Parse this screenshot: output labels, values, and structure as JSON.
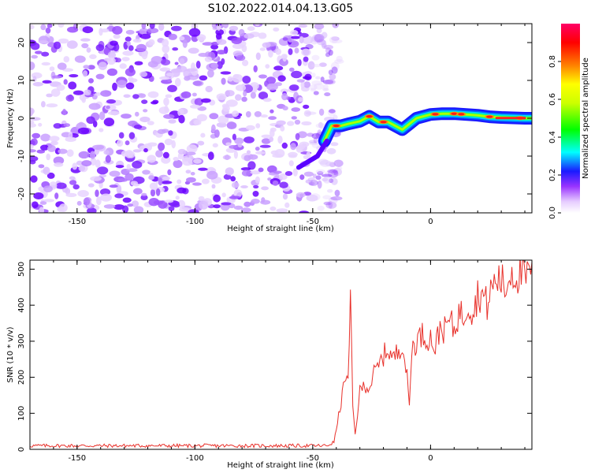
{
  "title": "S102.2022.014.04.13.G05",
  "chart_data": [
    {
      "type": "heatmap",
      "name": "spectrogram",
      "xlabel": "Height of straight line (km)",
      "ylabel": "Frequency (Hz)",
      "xlim": [
        -170,
        43
      ],
      "ylim": [
        -25,
        25
      ],
      "xticks": [
        -150,
        -100,
        -50,
        0
      ],
      "yticks": [
        -20,
        -10,
        0,
        10,
        20
      ],
      "colorbar": {
        "label": "Normalized spectral amplitude",
        "range": [
          0,
          1
        ],
        "ticks": [
          0.0,
          0.2,
          0.4,
          0.6,
          0.8
        ]
      },
      "signal_ridge": {
        "description_points_x": [
          -45,
          -42,
          -38,
          -35,
          -30,
          -26,
          -22,
          -18,
          -15,
          -12,
          -9,
          -6,
          -3,
          0,
          5,
          10,
          15,
          20,
          25,
          30,
          35,
          40,
          43
        ],
        "description_points_y": [
          -6,
          -2,
          -2,
          -1.5,
          -0.8,
          0.5,
          -1,
          -1,
          -2,
          -3,
          -1.5,
          0,
          0.5,
          1,
          1.2,
          1.2,
          1,
          0.8,
          0.4,
          0.2,
          0.1,
          0,
          0
        ],
        "peak_amplitude_x": [
          -40,
          -26,
          -20,
          2,
          10,
          13,
          25,
          38
        ]
      },
      "noise_region_x": [
        -170,
        -45
      ]
    },
    {
      "type": "line",
      "name": "snr",
      "xlabel": "Height of straight line (km)",
      "ylabel": "SNR (10 * v/v)",
      "xlim": [
        -170,
        43
      ],
      "ylim": [
        0,
        525
      ],
      "xticks": [
        -150,
        -100,
        -50,
        0
      ],
      "yticks": [
        0,
        100,
        200,
        300,
        400,
        500
      ],
      "color": "#e8302a",
      "series": [
        {
          "name": "SNR",
          "x": [
            -170,
            -160,
            -150,
            -140,
            -130,
            -120,
            -110,
            -100,
            -90,
            -80,
            -70,
            -60,
            -50,
            -44,
            -41,
            -38,
            -36,
            -35,
            -34,
            -33,
            -32,
            -30,
            -28,
            -26,
            -24,
            -22,
            -20,
            -18,
            -16,
            -14,
            -12,
            -10,
            -9,
            -8,
            -6,
            -4,
            -2,
            0,
            2,
            4,
            6,
            8,
            10,
            12,
            14,
            16,
            18,
            20,
            22,
            24,
            26,
            28,
            30,
            32,
            34,
            36,
            38,
            40,
            42,
            43
          ],
          "y": [
            10,
            10,
            10,
            10,
            10,
            10,
            10,
            10,
            10,
            10,
            10,
            10,
            10,
            10,
            20,
            130,
            210,
            180,
            410,
            120,
            40,
            160,
            180,
            170,
            210,
            230,
            260,
            280,
            250,
            270,
            300,
            200,
            120,
            280,
            300,
            320,
            310,
            310,
            280,
            340,
            330,
            360,
            330,
            380,
            370,
            410,
            380,
            430,
            430,
            400,
            450,
            470,
            470,
            440,
            500,
            480,
            490,
            470,
            490,
            520
          ]
        }
      ]
    }
  ]
}
